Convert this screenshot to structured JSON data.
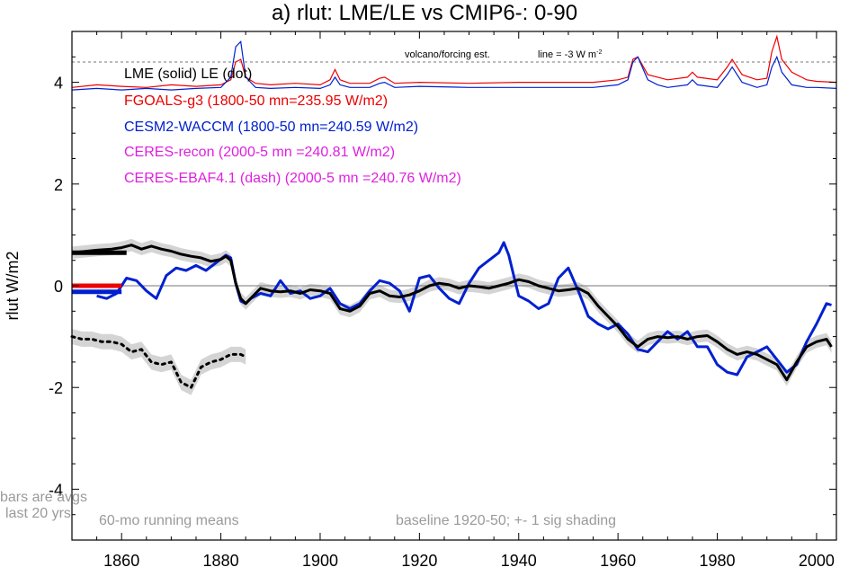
{
  "chart_data": {
    "type": "line",
    "title": "a) rlut: LME/LE vs CMIP6-: 0-90",
    "ylabel": "rlut W/m2",
    "xlabel": "",
    "xlim": [
      1850,
      2004
    ],
    "ylim": [
      -5,
      5
    ],
    "x_ticks": [
      1860,
      1880,
      1900,
      1920,
      1940,
      1960,
      1980,
      2000
    ],
    "y_ticks": [
      4,
      2,
      0,
      -2,
      -4
    ],
    "y_tick_labels": [
      "4",
      "2",
      "0",
      "-2",
      "-4"
    ],
    "zero_line": 0,
    "volcano_reference_y": 4.4,
    "volcano_note": "volcano/forcing est.",
    "volcano_line_note": "line = -3 W m",
    "volcano_line_note_sup": "-2",
    "legend": [
      {
        "text": "LME (solid)   LE (dot)",
        "color": "#000000"
      },
      {
        "text": "FGOALS-g3 (1800-50 mn=235.95 W/m2)",
        "color": "#ee0000"
      },
      {
        "text": "CESM2-WACCM (1800-50 mn=240.59 W/m2)",
        "color": "#0020d0"
      },
      {
        "text": "CERES-recon (2000-5 mn =240.81 W/m2)",
        "color": "#e020e0"
      },
      {
        "text": "CERES-EBAF4.1 (dash) (2000-5 mn =240.76 W/m2)",
        "color": "#e020e0"
      }
    ],
    "notes": {
      "bars_line1": "bars are avgs",
      "bars_line2": "last 20 yrs",
      "running": "60-mo running means",
      "baseline": "baseline 1920-50; +- 1 sig shading"
    },
    "colors": {
      "lme": "#000000",
      "fgoals": "#ee0000",
      "cesm": "#0020d0",
      "shade": "#d4d4d4",
      "note": "#9a9a9a"
    },
    "series": [
      {
        "name": "LME (solid)",
        "color": "#000000",
        "style": "solid",
        "x": [
          1850,
          1855,
          1858,
          1860,
          1862,
          1864,
          1866,
          1868,
          1870,
          1872,
          1874,
          1876,
          1878,
          1880,
          1881,
          1882,
          1883,
          1884,
          1885,
          1886,
          1888,
          1890,
          1892,
          1894,
          1896,
          1898,
          1900,
          1902,
          1904,
          1906,
          1908,
          1910,
          1912,
          1914,
          1916,
          1918,
          1920,
          1922,
          1924,
          1926,
          1928,
          1930,
          1932,
          1934,
          1936,
          1938,
          1940,
          1942,
          1944,
          1946,
          1948,
          1950,
          1952,
          1954,
          1956,
          1958,
          1960,
          1962,
          1964,
          1966,
          1968,
          1970,
          1972,
          1974,
          1976,
          1978,
          1980,
          1982,
          1984,
          1986,
          1988,
          1990,
          1992,
          1994,
          1996,
          1998,
          2000,
          2002,
          2003
        ],
        "y": [
          0.65,
          0.7,
          0.72,
          0.75,
          0.8,
          0.72,
          0.78,
          0.72,
          0.68,
          0.62,
          0.58,
          0.55,
          0.48,
          0.52,
          0.58,
          0.5,
          0.05,
          -0.25,
          -0.35,
          -0.25,
          -0.05,
          -0.1,
          -0.12,
          -0.1,
          -0.15,
          -0.08,
          -0.1,
          -0.15,
          -0.45,
          -0.5,
          -0.4,
          -0.15,
          -0.1,
          -0.2,
          -0.22,
          -0.18,
          -0.1,
          0,
          0.05,
          0.02,
          -0.05,
          0,
          -0.02,
          -0.05,
          0,
          0.05,
          0.12,
          0.08,
          0,
          -0.05,
          -0.1,
          -0.08,
          -0.05,
          -0.15,
          -0.4,
          -0.6,
          -0.8,
          -1.05,
          -1.2,
          -1.05,
          -1.0,
          -1.02,
          -1.0,
          -1.05,
          -1.0,
          -0.98,
          -1.1,
          -1.25,
          -1.35,
          -1.3,
          -1.35,
          -1.45,
          -1.55,
          -1.85,
          -1.5,
          -1.2,
          -1.1,
          -1.05,
          -1.2
        ]
      },
      {
        "name": "LE (dot)",
        "color": "#000000",
        "style": "dot",
        "x": [
          1850,
          1852,
          1854,
          1856,
          1858,
          1860,
          1862,
          1864,
          1866,
          1868,
          1870,
          1872,
          1874,
          1876,
          1878,
          1880,
          1882,
          1884,
          1885
        ],
        "y": [
          -1.0,
          -1.05,
          -1.05,
          -1.1,
          -1.1,
          -1.15,
          -1.3,
          -1.25,
          -1.5,
          -1.55,
          -1.5,
          -1.9,
          -2.0,
          -1.6,
          -1.5,
          -1.45,
          -1.35,
          -1.35,
          -1.4
        ]
      },
      {
        "name": "CESM2-WACCM",
        "color": "#0020d0",
        "style": "solid",
        "x": [
          1855,
          1857,
          1859,
          1861,
          1863,
          1865,
          1867,
          1869,
          1871,
          1873,
          1875,
          1877,
          1879,
          1881,
          1882,
          1883,
          1884,
          1885,
          1886,
          1888,
          1890,
          1892,
          1894,
          1896,
          1898,
          1900,
          1902,
          1904,
          1906,
          1908,
          1910,
          1912,
          1914,
          1916,
          1918,
          1920,
          1922,
          1924,
          1926,
          1928,
          1930,
          1932,
          1934,
          1936,
          1937,
          1938,
          1939,
          1940,
          1942,
          1944,
          1946,
          1948,
          1950,
          1952,
          1954,
          1956,
          1958,
          1960,
          1962,
          1964,
          1966,
          1968,
          1970,
          1972,
          1974,
          1976,
          1978,
          1980,
          1982,
          1984,
          1986,
          1988,
          1990,
          1992,
          1994,
          1996,
          1998,
          2000,
          2002,
          2003
        ],
        "y": [
          -0.2,
          -0.25,
          -0.15,
          0.15,
          0.1,
          -0.1,
          -0.25,
          0.2,
          0.35,
          0.3,
          0.4,
          0.3,
          0.45,
          0.6,
          0.55,
          0.05,
          -0.3,
          -0.35,
          -0.25,
          -0.15,
          -0.2,
          0.1,
          -0.15,
          -0.1,
          -0.25,
          -0.2,
          -0.05,
          -0.35,
          -0.45,
          -0.35,
          -0.1,
          0.1,
          0.05,
          -0.1,
          -0.5,
          0.15,
          0.2,
          -0.05,
          -0.25,
          -0.35,
          0.05,
          0.35,
          0.5,
          0.65,
          0.85,
          0.6,
          0.2,
          -0.2,
          -0.3,
          -0.45,
          -0.35,
          0.15,
          0.35,
          -0.1,
          -0.6,
          -0.75,
          -0.85,
          -0.75,
          -0.95,
          -1.25,
          -1.3,
          -1.1,
          -0.9,
          -1.05,
          -0.9,
          -1.2,
          -1.2,
          -1.55,
          -1.7,
          -1.75,
          -1.4,
          -1.3,
          -1.2,
          -1.45,
          -1.7,
          -1.55,
          -1.1,
          -0.75,
          -0.35,
          -0.38
        ]
      }
    ],
    "upper_series": [
      {
        "name": "FGOALS-g3",
        "color": "#ee0000",
        "x": [
          1850,
          1855,
          1860,
          1865,
          1870,
          1875,
          1880,
          1882,
          1883,
          1884,
          1885,
          1887,
          1890,
          1895,
          1900,
          1902,
          1903,
          1904,
          1906,
          1910,
          1912,
          1913,
          1915,
          1920,
          1930,
          1940,
          1950,
          1955,
          1960,
          1962,
          1963,
          1964,
          1966,
          1968,
          1970,
          1974,
          1975,
          1976,
          1980,
          1982,
          1983,
          1985,
          1988,
          1990,
          1991,
          1992,
          1993,
          1995,
          1998,
          2000,
          2004
        ],
        "y": [
          3.9,
          3.95,
          3.92,
          3.9,
          3.95,
          3.92,
          3.95,
          4.05,
          4.4,
          4.45,
          4.1,
          3.98,
          3.95,
          3.98,
          3.95,
          4.05,
          4.25,
          4.05,
          3.98,
          3.98,
          4.08,
          4.1,
          3.98,
          4.0,
          3.98,
          4.0,
          4.0,
          4.0,
          4.05,
          4.1,
          4.45,
          4.5,
          4.15,
          4.1,
          4.05,
          4.1,
          4.2,
          4.1,
          4.05,
          4.3,
          4.45,
          4.15,
          4.05,
          4.08,
          4.6,
          4.9,
          4.45,
          4.2,
          4.05,
          4.02,
          4.0
        ]
      },
      {
        "name": "CESM2-WACCM",
        "color": "#0020d0",
        "x": [
          1850,
          1855,
          1860,
          1865,
          1870,
          1875,
          1880,
          1882,
          1883,
          1884,
          1885,
          1887,
          1890,
          1895,
          1900,
          1902,
          1903,
          1904,
          1906,
          1910,
          1912,
          1913,
          1915,
          1920,
          1930,
          1940,
          1950,
          1955,
          1960,
          1962,
          1963,
          1964,
          1966,
          1968,
          1970,
          1974,
          1975,
          1976,
          1980,
          1982,
          1983,
          1985,
          1988,
          1990,
          1991,
          1992,
          1993,
          1995,
          1998,
          2000,
          2004
        ],
        "y": [
          3.85,
          3.88,
          3.85,
          3.88,
          3.85,
          3.88,
          3.9,
          4.1,
          4.7,
          4.8,
          4.1,
          3.9,
          3.88,
          3.9,
          3.88,
          3.95,
          4.1,
          3.95,
          3.9,
          3.9,
          3.98,
          4.0,
          3.9,
          3.92,
          3.9,
          3.9,
          3.9,
          3.9,
          3.95,
          4.05,
          4.4,
          4.5,
          4.05,
          3.95,
          3.9,
          3.95,
          4.05,
          3.95,
          3.9,
          4.15,
          4.3,
          4.0,
          3.9,
          3.95,
          4.3,
          4.5,
          4.2,
          3.95,
          3.9,
          3.9,
          3.88
        ]
      }
    ],
    "bars": [
      {
        "color": "#000000",
        "x": [
          1850,
          1861
        ],
        "y": 0.65
      },
      {
        "color": "#ee0000",
        "x": [
          1850,
          1860
        ],
        "y": 0.0
      },
      {
        "color": "#0020d0",
        "x": [
          1850,
          1860
        ],
        "y": -0.12
      }
    ]
  }
}
